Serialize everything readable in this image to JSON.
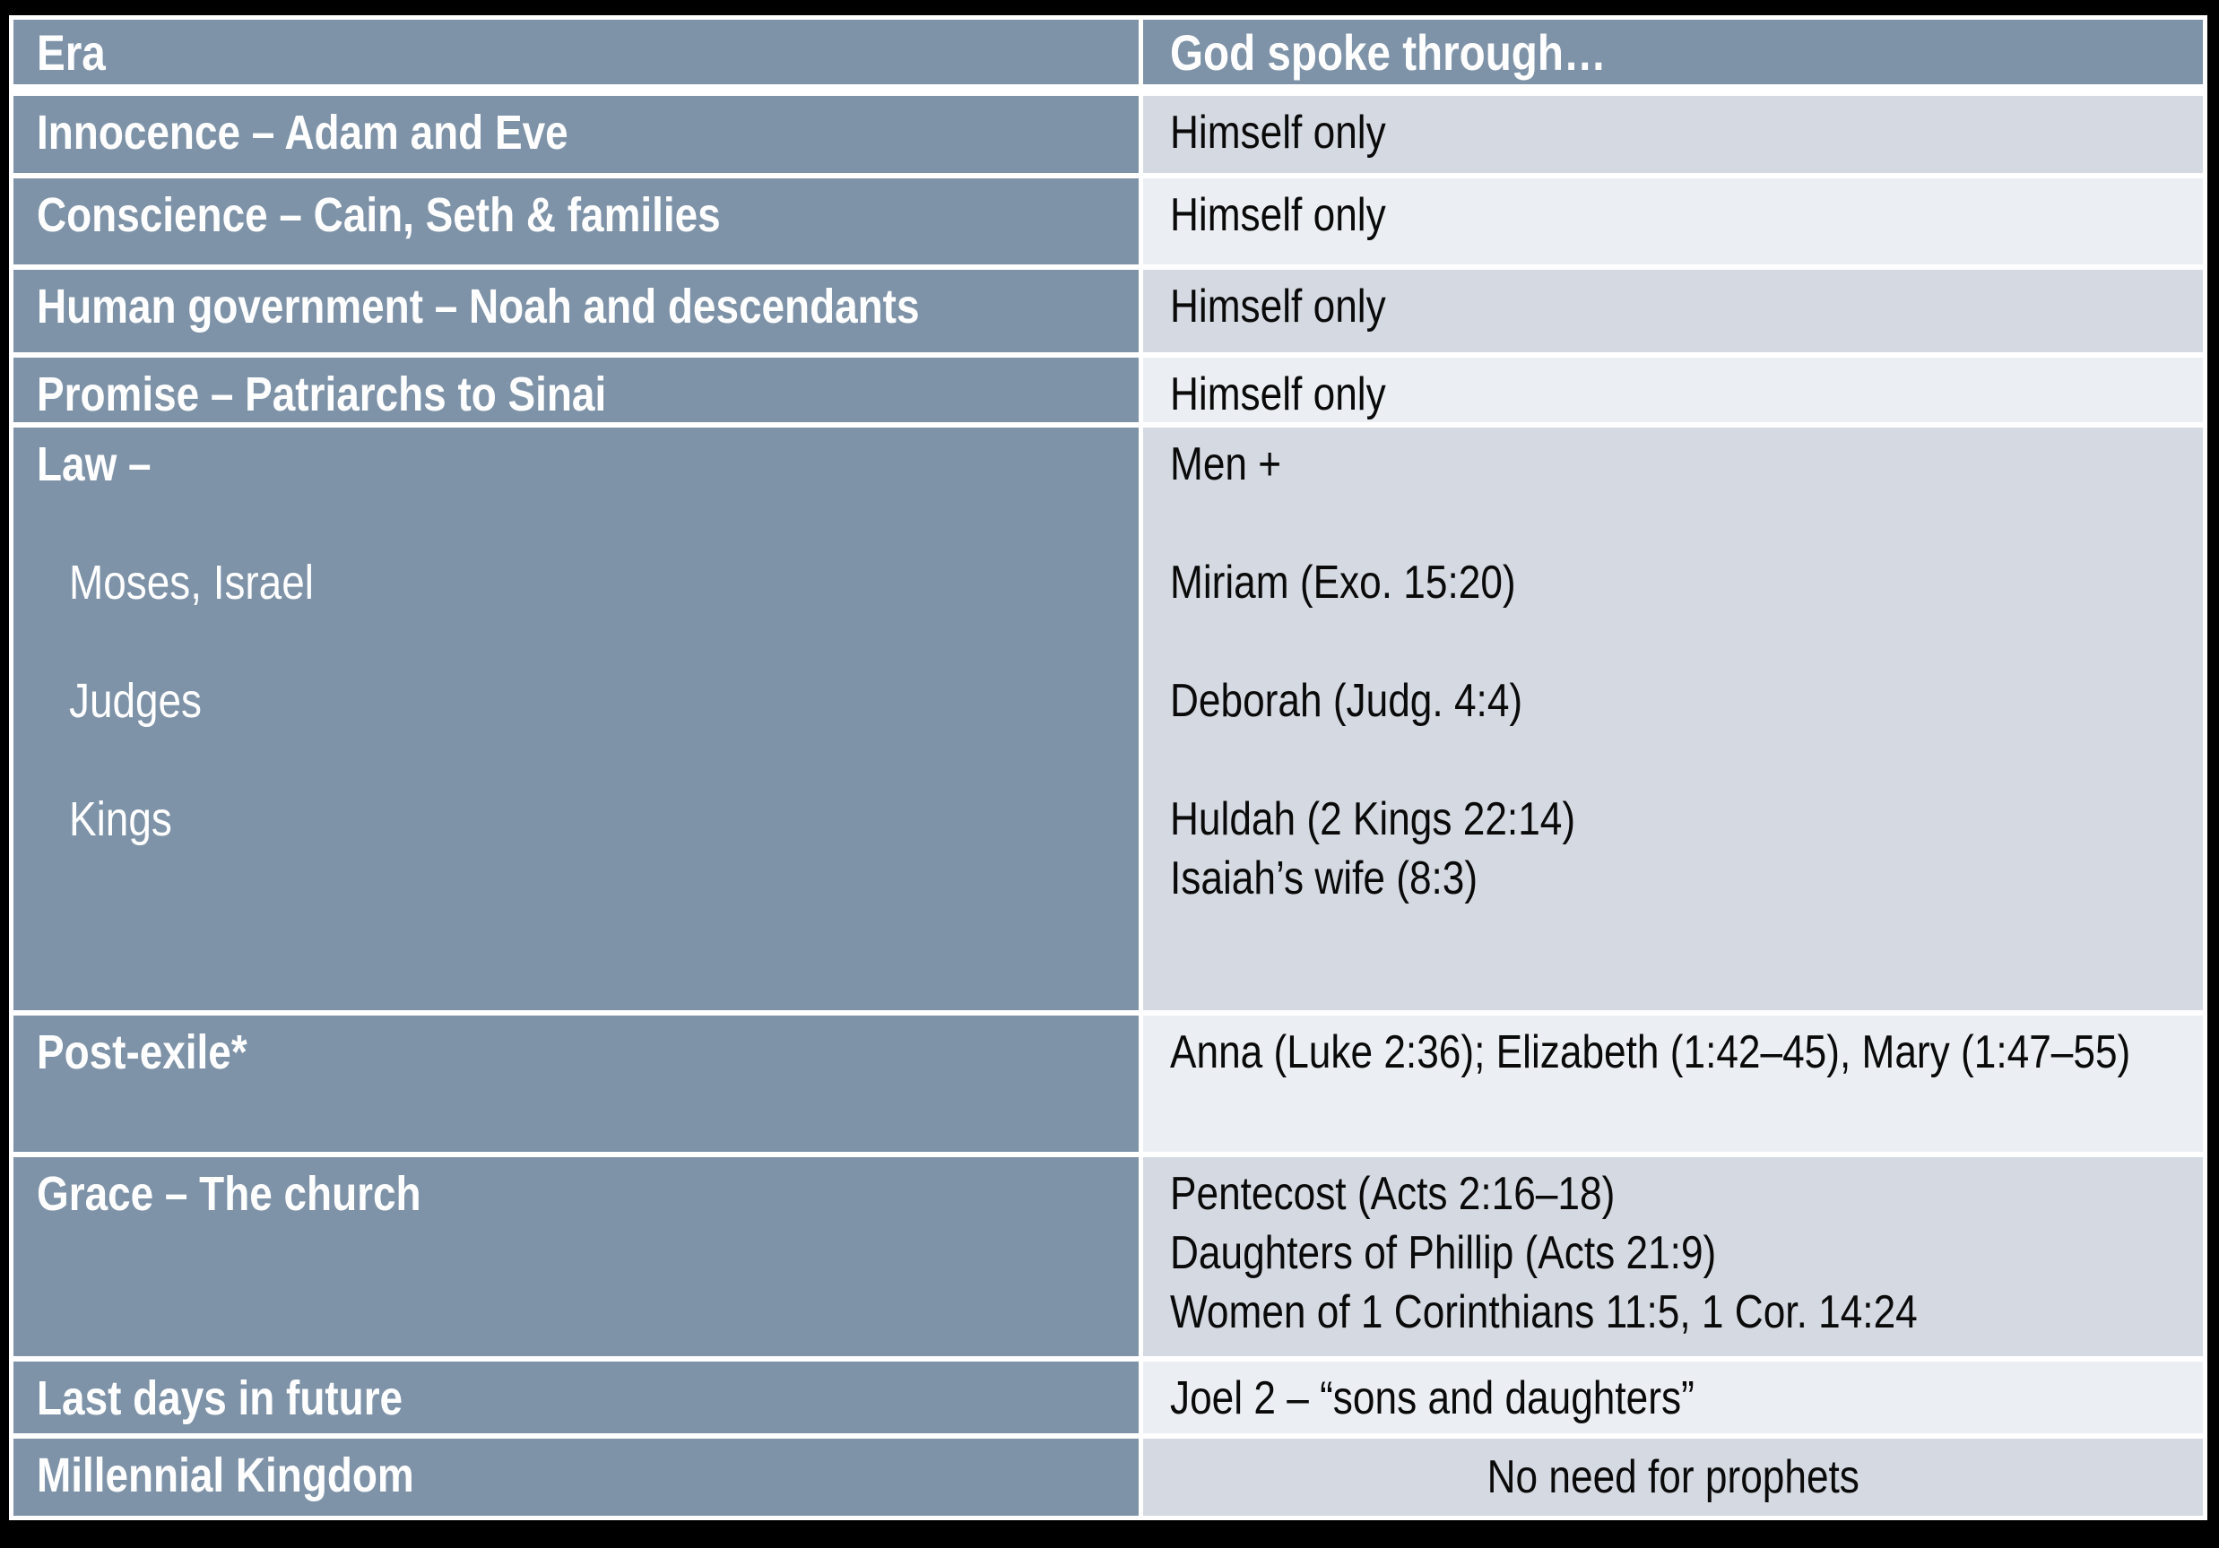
{
  "slide": {
    "colors": {
      "background": "#000000",
      "grid_border": "#ffffff",
      "header_and_era_bg": "#7E93A8",
      "row_stripe_dark": "#D5DAE2",
      "row_stripe_light": "#EBEFF3",
      "header_text": "#ffffff",
      "body_text": "#0a0a0a"
    },
    "table": {
      "header": {
        "era": "Era",
        "spoke": "God spoke through…"
      },
      "rows": [
        {
          "era": "Innocence – Adam and Eve",
          "spoke": "Himself only",
          "stripe": "dark"
        },
        {
          "era": "Conscience – Cain, Seth & families",
          "spoke": "Himself only",
          "stripe": "light"
        },
        {
          "era": "Human government – Noah and descendants",
          "spoke": "Himself only",
          "stripe": "dark"
        },
        {
          "era": "Promise – Patriarchs to Sinai",
          "spoke": "Himself only",
          "stripe": "light"
        },
        {
          "era": "Law –",
          "era_sub": [
            "Moses, Israel",
            "Judges",
            "Kings"
          ],
          "spoke_lines": [
            "Men +",
            "Miriam (Exo. 15:20)",
            "Deborah (Judg. 4:4)",
            "Huldah (2 Kings 22:14)",
            "Isaiah’s wife (8:3)"
          ],
          "stripe": "dark"
        },
        {
          "era": "Post-exile*",
          "spoke": "Anna (Luke 2:36); Elizabeth (1:42–45), Mary (1:47–55)",
          "stripe": "light"
        },
        {
          "era": "Grace – The church",
          "spoke_lines": [
            "Pentecost (Acts 2:16–18)",
            "Daughters of Phillip (Acts 21:9)",
            "Women of 1 Corinthians 11:5, 1 Cor. 14:24"
          ],
          "stripe": "dark"
        },
        {
          "era": "Last days in future",
          "spoke": "Joel 2 – “sons and daughters”",
          "stripe": "light"
        },
        {
          "era": "Millennial Kingdom",
          "spoke": "No need for prophets",
          "stripe": "dark",
          "spoke_align": "center"
        }
      ]
    }
  }
}
